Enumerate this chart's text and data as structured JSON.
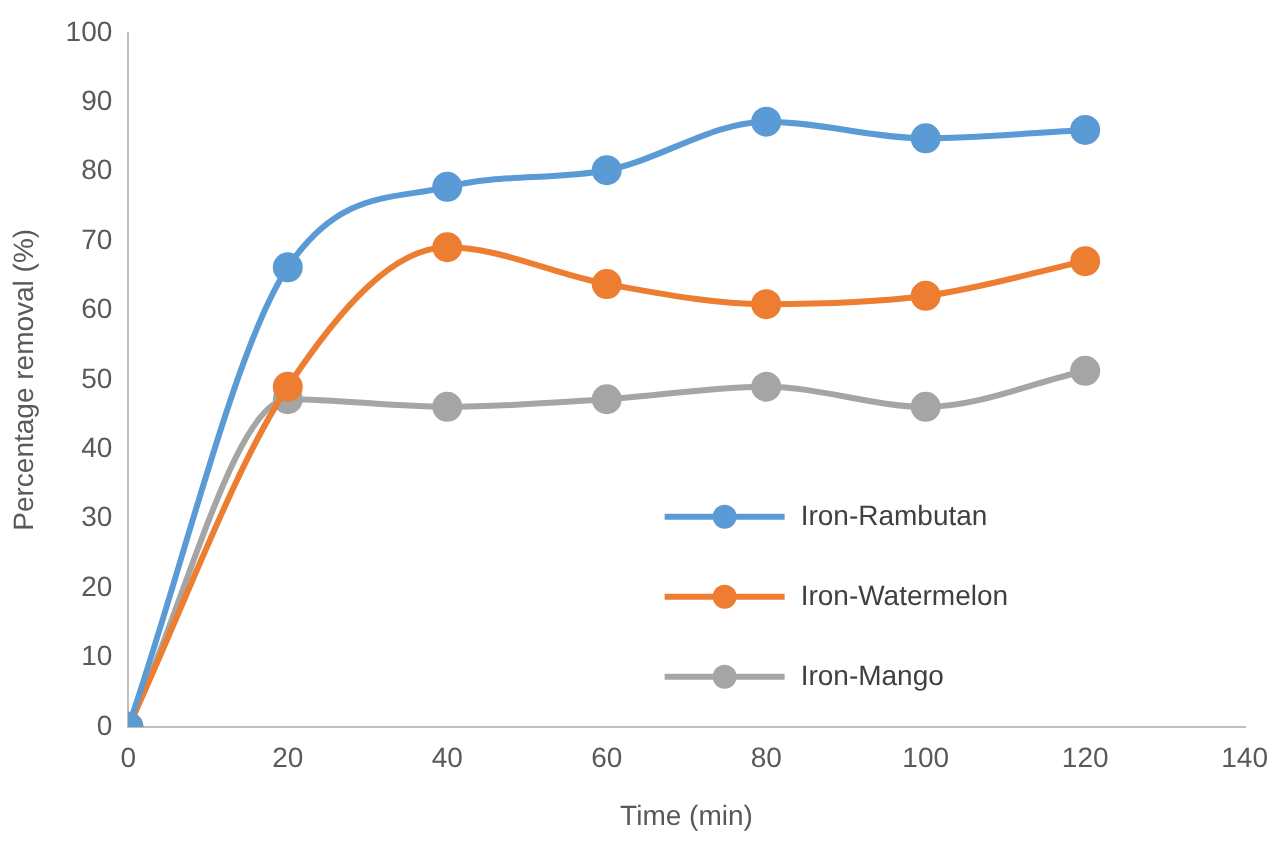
{
  "chart_data": {
    "type": "line",
    "xlabel": "Time (min)",
    "ylabel": "Percentage removal (%)",
    "x": [
      0,
      20,
      40,
      60,
      80,
      100,
      120
    ],
    "series": [
      {
        "name": "Iron-Rambutan",
        "color": "#5b9bd5",
        "values": [
          0,
          66.2,
          77.8,
          80.2,
          87.2,
          84.8,
          86
        ]
      },
      {
        "name": "Iron-Watermelon",
        "color": "#ed7d31",
        "values": [
          0,
          49,
          69.1,
          63.8,
          60.9,
          62.1,
          67.1
        ]
      },
      {
        "name": "Iron-Mango",
        "color": "#a5a5a5",
        "values": [
          0,
          47.2,
          46.1,
          47.2,
          49,
          46.1,
          51.3
        ]
      }
    ],
    "xlim": [
      0,
      140
    ],
    "xticks": [
      0,
      20,
      40,
      60,
      80,
      100,
      120,
      140
    ],
    "ylim": [
      0,
      100
    ],
    "yticks": [
      0,
      10,
      20,
      30,
      40,
      50,
      60,
      70,
      80,
      90,
      100
    ],
    "grid": false,
    "legend": "bottom right",
    "marker": "circle",
    "line_style": "solid"
  }
}
